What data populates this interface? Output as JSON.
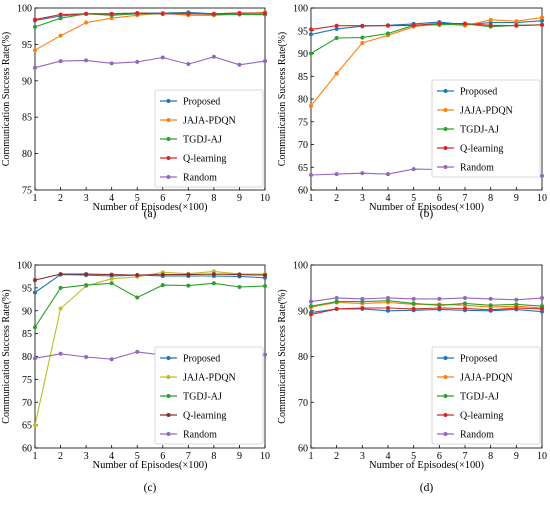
{
  "figure": {
    "series_colors": {
      "Proposed": "#1f77b4",
      "JAJA-PDQN": "#ff7f0e",
      "TGDJ-AJ": "#2ca02c",
      "Q-learning": "#d62728",
      "Random": "#9467bd"
    },
    "panel_c_colors": {
      "Proposed": "#1f77b4",
      "JAJA-PDQN": "#bcbd22",
      "TGDJ-AJ": "#2ca02c",
      "Q-learning": "#8c2d2d",
      "Random": "#9467bd"
    }
  },
  "chart_data": [
    {
      "panel_label": "(a)",
      "type": "line",
      "xlabel": "Number of Episodes(×100)",
      "ylabel": "Communication Success Rate(%)",
      "x": [
        1,
        2,
        3,
        4,
        5,
        6,
        7,
        8,
        9,
        10
      ],
      "xlim": [
        1,
        10
      ],
      "ylim": [
        75,
        100
      ],
      "yticks": [
        75,
        80,
        85,
        90,
        95,
        100
      ],
      "legend_position": "lower-right",
      "series": [
        {
          "name": "Proposed",
          "values": [
            98.3,
            98.9,
            99.2,
            99.2,
            99.3,
            99.3,
            99.4,
            99.2,
            99.3,
            99.3
          ]
        },
        {
          "name": "JAJA-PDQN",
          "values": [
            94.2,
            96.2,
            98.0,
            98.6,
            99.0,
            99.3,
            99.0,
            99.0,
            99.2,
            99.4
          ]
        },
        {
          "name": "TGDJ-AJ",
          "values": [
            97.4,
            98.6,
            99.2,
            99.0,
            99.2,
            99.2,
            99.3,
            99.1,
            99.1,
            99.1
          ]
        },
        {
          "name": "Q-learning",
          "values": [
            98.4,
            99.1,
            99.2,
            99.2,
            99.3,
            99.2,
            99.2,
            99.2,
            99.3,
            99.3
          ]
        },
        {
          "name": "Random",
          "values": [
            91.8,
            92.7,
            92.8,
            92.4,
            92.6,
            93.2,
            92.3,
            93.3,
            92.2,
            92.7
          ]
        }
      ]
    },
    {
      "panel_label": "(b)",
      "type": "line",
      "xlabel": "Number of Episodes(×100)",
      "ylabel": "Communication Success Rate(%)",
      "x": [
        1,
        2,
        3,
        4,
        5,
        6,
        7,
        8,
        9,
        10
      ],
      "xlim": [
        1,
        10
      ],
      "ylim": [
        60,
        100
      ],
      "yticks": [
        60,
        65,
        70,
        75,
        80,
        85,
        90,
        95,
        100
      ],
      "legend_position": "center-right",
      "series": [
        {
          "name": "Proposed",
          "values": [
            94.2,
            95.4,
            96.0,
            96.2,
            96.5,
            96.9,
            96.3,
            96.8,
            96.8,
            97.2
          ]
        },
        {
          "name": "JAJA-PDQN",
          "values": [
            78.5,
            85.6,
            92.3,
            94.0,
            95.9,
            96.6,
            96.1,
            97.4,
            97.1,
            97.9
          ]
        },
        {
          "name": "TGDJ-AJ",
          "values": [
            90.0,
            93.4,
            93.5,
            94.4,
            96.2,
            96.3,
            96.5,
            95.9,
            96.2,
            96.3
          ]
        },
        {
          "name": "Q-learning",
          "values": [
            95.3,
            96.1,
            96.1,
            96.1,
            96.2,
            96.6,
            96.6,
            96.2,
            96.1,
            96.3
          ]
        },
        {
          "name": "Random",
          "values": [
            63.3,
            63.5,
            63.7,
            63.5,
            64.6,
            64.5,
            65.0,
            63.3,
            63.8,
            63.1
          ]
        }
      ]
    },
    {
      "panel_label": "(c)",
      "type": "line",
      "xlabel": "Number of Episodes(×100)",
      "ylabel": "Communication Success Rate(%)",
      "x": [
        1,
        2,
        3,
        4,
        5,
        6,
        7,
        8,
        9,
        10
      ],
      "xlim": [
        1,
        10
      ],
      "ylim": [
        60,
        100
      ],
      "yticks": [
        60,
        65,
        70,
        75,
        80,
        85,
        90,
        95,
        100
      ],
      "legend_position": "lower-right",
      "series": [
        {
          "name": "Proposed",
          "values": [
            94.0,
            97.9,
            97.8,
            97.6,
            97.8,
            97.6,
            97.6,
            97.6,
            97.5,
            97.2
          ]
        },
        {
          "name": "JAJA-PDQN",
          "values": [
            65.0,
            90.5,
            95.4,
            97.0,
            97.4,
            98.4,
            98.1,
            98.6,
            98.0,
            98.0
          ]
        },
        {
          "name": "TGDJ-AJ",
          "values": [
            86.4,
            95.0,
            95.6,
            96.0,
            92.9,
            95.6,
            95.5,
            96.0,
            95.2,
            95.4
          ]
        },
        {
          "name": "Q-learning",
          "values": [
            96.7,
            98.0,
            98.0,
            97.9,
            97.8,
            97.9,
            97.9,
            98.0,
            97.9,
            97.8
          ]
        },
        {
          "name": "Random",
          "values": [
            79.6,
            80.6,
            79.9,
            79.4,
            81.0,
            80.3,
            80.2,
            81.0,
            80.8,
            80.4
          ]
        }
      ]
    },
    {
      "panel_label": "(d)",
      "type": "line",
      "xlabel": "Number of Episodes(×100)",
      "ylabel": "Communication Success Rate(%)",
      "x": [
        1,
        2,
        3,
        4,
        5,
        6,
        7,
        8,
        9,
        10
      ],
      "xlim": [
        1,
        10
      ],
      "ylim": [
        60,
        100
      ],
      "yticks": [
        60,
        70,
        80,
        90,
        100
      ],
      "legend_position": "lower-right",
      "series": [
        {
          "name": "Proposed",
          "values": [
            89.6,
            90.4,
            90.4,
            90.0,
            90.1,
            90.3,
            90.1,
            90.0,
            90.3,
            89.8
          ]
        },
        {
          "name": "JAJA-PDQN",
          "values": [
            90.8,
            91.8,
            91.6,
            91.8,
            91.4,
            91.4,
            91.2,
            90.8,
            91.0,
            90.6
          ]
        },
        {
          "name": "TGDJ-AJ",
          "values": [
            91.0,
            92.0,
            92.0,
            92.2,
            91.6,
            91.2,
            91.6,
            91.2,
            91.4,
            91.0
          ]
        },
        {
          "name": "Q-learning",
          "values": [
            89.2,
            90.4,
            90.6,
            90.6,
            90.4,
            90.6,
            90.5,
            90.2,
            90.6,
            90.4
          ]
        },
        {
          "name": "Random",
          "values": [
            92.0,
            92.8,
            92.6,
            92.8,
            92.6,
            92.6,
            92.8,
            92.6,
            92.4,
            92.8
          ]
        }
      ]
    }
  ]
}
